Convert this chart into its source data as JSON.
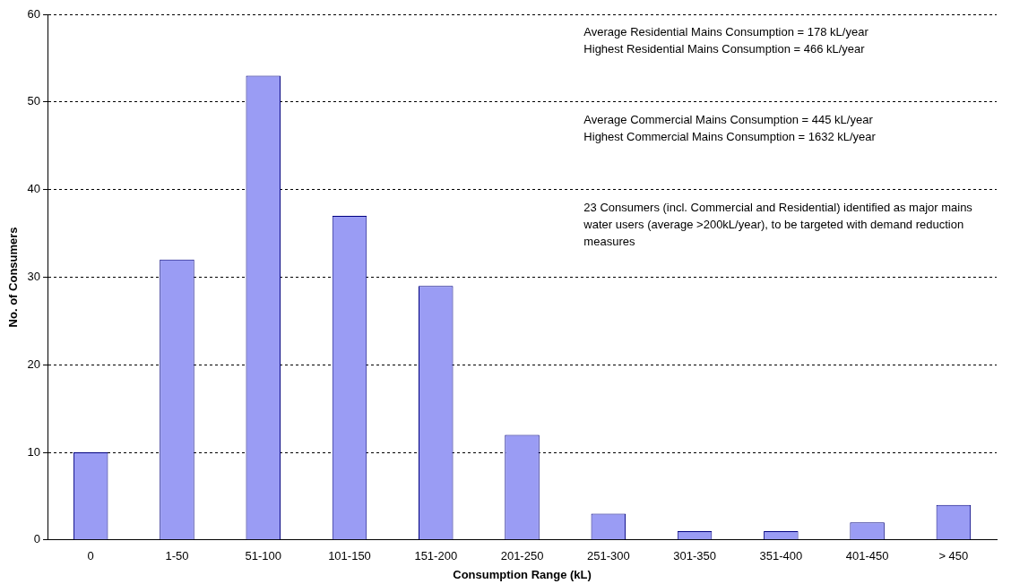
{
  "chart_data": {
    "type": "bar",
    "xlabel": "Consumption Range (kL)",
    "ylabel": "No. of Consumers",
    "categories": [
      "0",
      "1-50",
      "51-100",
      "101-150",
      "151-200",
      "201-250",
      "251-300",
      "301-350",
      "351-400",
      "401-450",
      "> 450"
    ],
    "values": [
      10,
      32,
      53,
      37,
      29,
      12,
      3,
      1,
      1,
      2,
      4
    ],
    "color": "#9a9cf4",
    "ylim": [
      0,
      60
    ],
    "yticks": [
      0,
      10,
      20,
      30,
      40,
      50,
      60
    ],
    "grid": "y",
    "annotations": [
      "Average Residential Mains Consumption = 178 kL/year",
      "Highest Residential Mains Consumption = 466 kL/year",
      "Average Commercial Mains Consumption = 445 kL/year",
      "Highest Commercial Mains Consumption = 1632 kL/year",
      "23 Consumers (incl. Commercial and Residential) identified as major mains water users (average >200kL/year), to be targeted with demand reduction measures"
    ]
  }
}
